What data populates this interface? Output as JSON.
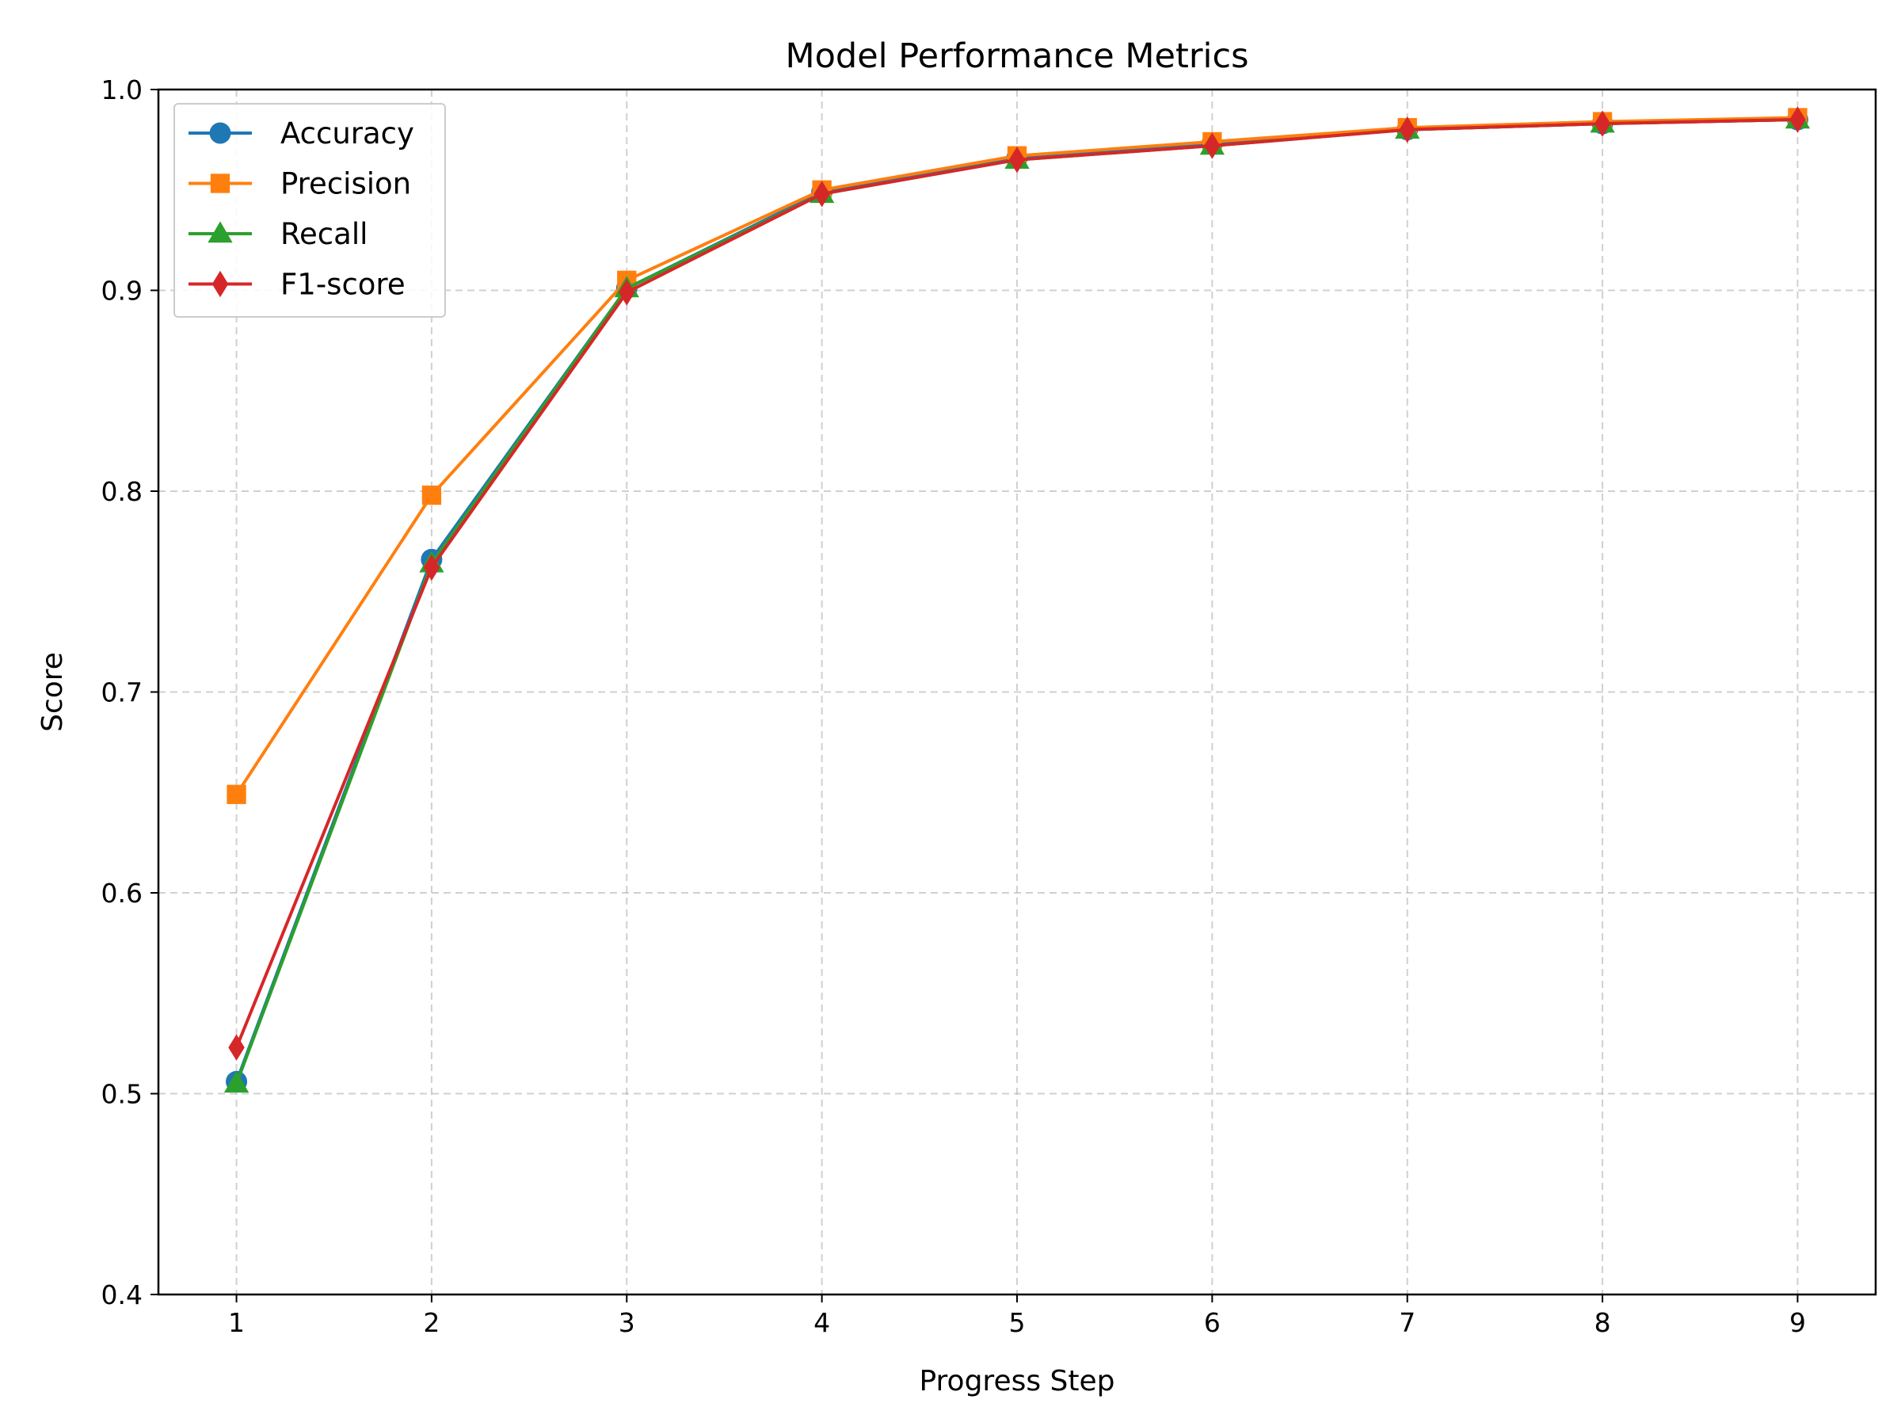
{
  "chart_data": {
    "type": "line",
    "title": "Model Performance Metrics",
    "xlabel": "Progress Step",
    "ylabel": "Score",
    "x": [
      1,
      2,
      3,
      4,
      5,
      6,
      7,
      8,
      9
    ],
    "xlim": [
      0.6,
      9.4
    ],
    "ylim": [
      0.4,
      1.0
    ],
    "yticks": [
      "0.4",
      "0.5",
      "0.6",
      "0.7",
      "0.8",
      "0.9",
      "1.0"
    ],
    "xticks": [
      "1",
      "2",
      "3",
      "4",
      "5",
      "6",
      "7",
      "8",
      "9"
    ],
    "grid": true,
    "legend_position": "top-left",
    "series": [
      {
        "name": "Accuracy",
        "color": "#1f77b4",
        "marker": "circle",
        "values": [
          0.506,
          0.766,
          0.901,
          0.949,
          0.966,
          0.973,
          0.98,
          0.983,
          0.985
        ]
      },
      {
        "name": "Precision",
        "color": "#ff7f0e",
        "marker": "square",
        "values": [
          0.649,
          0.798,
          0.905,
          0.95,
          0.967,
          0.974,
          0.981,
          0.984,
          0.986
        ]
      },
      {
        "name": "Recall",
        "color": "#2ca02c",
        "marker": "triangle",
        "values": [
          0.505,
          0.764,
          0.901,
          0.948,
          0.965,
          0.972,
          0.98,
          0.983,
          0.985
        ]
      },
      {
        "name": "F1-score",
        "color": "#d62728",
        "marker": "diamond",
        "values": [
          0.523,
          0.762,
          0.899,
          0.948,
          0.965,
          0.972,
          0.98,
          0.983,
          0.985
        ]
      }
    ]
  }
}
